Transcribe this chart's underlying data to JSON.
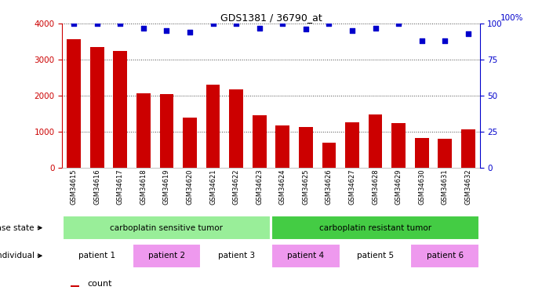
{
  "title": "GDS1381 / 36790_at",
  "samples": [
    "GSM34615",
    "GSM34616",
    "GSM34617",
    "GSM34618",
    "GSM34619",
    "GSM34620",
    "GSM34621",
    "GSM34622",
    "GSM34623",
    "GSM34624",
    "GSM34625",
    "GSM34626",
    "GSM34627",
    "GSM34628",
    "GSM34629",
    "GSM34630",
    "GSM34631",
    "GSM34632"
  ],
  "counts": [
    3560,
    3340,
    3230,
    2060,
    2050,
    1390,
    2310,
    2170,
    1460,
    1170,
    1130,
    700,
    1260,
    1480,
    1230,
    830,
    800,
    1060
  ],
  "percentiles": [
    100,
    100,
    100,
    97,
    95,
    94,
    100,
    100,
    97,
    100,
    96,
    100,
    95,
    97,
    100,
    88,
    88,
    93
  ],
  "ylim_left": [
    0,
    4000
  ],
  "ylim_right": [
    0,
    100
  ],
  "yticks_left": [
    0,
    1000,
    2000,
    3000,
    4000
  ],
  "yticks_right": [
    0,
    25,
    50,
    75,
    100
  ],
  "bar_color": "#CC0000",
  "dot_color": "#0000CC",
  "grid_color": "#000000",
  "disease_state_labels": [
    "carboplatin sensitive tumor",
    "carboplatin resistant tumor"
  ],
  "disease_state_colors": [
    "#99EE99",
    "#44CC44"
  ],
  "disease_state_ranges": [
    [
      0,
      9
    ],
    [
      9,
      18
    ]
  ],
  "patient_labels": [
    "patient 1",
    "patient 2",
    "patient 3",
    "patient 4",
    "patient 5",
    "patient 6"
  ],
  "patient_colors": [
    "#FFFFFF",
    "#EE99EE",
    "#FFFFFF",
    "#EE99EE",
    "#FFFFFF",
    "#EE99EE"
  ],
  "patient_ranges": [
    [
      0,
      3
    ],
    [
      3,
      6
    ],
    [
      6,
      9
    ],
    [
      9,
      12
    ],
    [
      12,
      15
    ],
    [
      15,
      18
    ]
  ],
  "bg_color": "#FFFFFF",
  "tick_bg": "#CCCCCC"
}
